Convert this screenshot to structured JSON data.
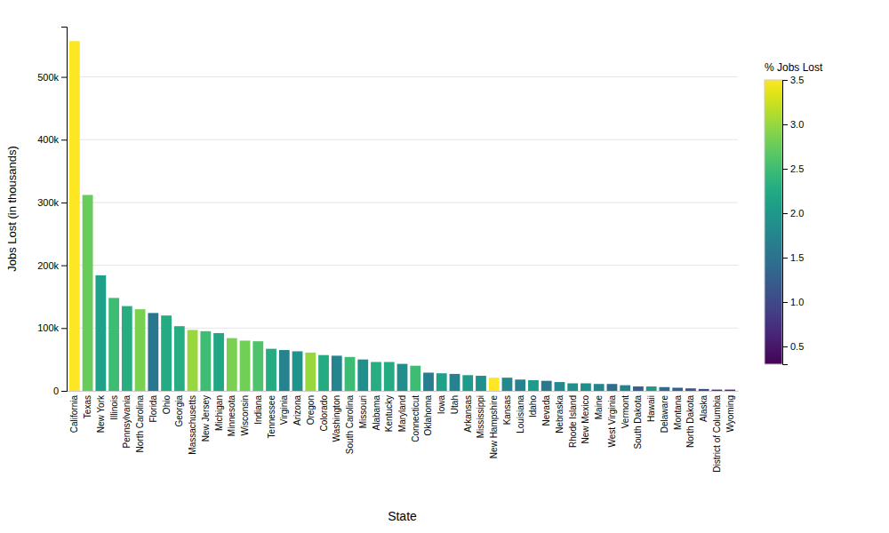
{
  "chart_data": {
    "type": "bar",
    "xlabel": "State",
    "ylabel": "Jobs Lost (in thousands)",
    "categories": [
      "California",
      "Texas",
      "New York",
      "Illinois",
      "Pennsylvania",
      "North Carolina",
      "Florida",
      "Ohio",
      "Georgia",
      "Massachusetts",
      "New Jersey",
      "Michigan",
      "Minnesota",
      "Wisconsin",
      "Indiana",
      "Tennessee",
      "Virginia",
      "Arizona",
      "Oregon",
      "Colorado",
      "Washington",
      "South Carolina",
      "Missouri",
      "Alabama",
      "Kentucky",
      "Maryland",
      "Connecticut",
      "Oklahoma",
      "Iowa",
      "Utah",
      "Arkansas",
      "Mississippi",
      "New Hampshire",
      "Kansas",
      "Louisiana",
      "Idaho",
      "Nevada",
      "Nebraska",
      "Rhode Island",
      "New Mexico",
      "Maine",
      "West Virginia",
      "Vermont",
      "South Dakota",
      "Hawaii",
      "Delaware",
      "Montana",
      "North Dakota",
      "Alaska",
      "District of Columbia",
      "Wyoming"
    ],
    "values": [
      557000,
      312000,
      184000,
      148000,
      135000,
      130000,
      124000,
      120000,
      103000,
      97000,
      95000,
      92000,
      84000,
      80000,
      79000,
      67000,
      65000,
      63000,
      61000,
      57000,
      56000,
      54000,
      50000,
      46000,
      46000,
      43000,
      40000,
      29000,
      28000,
      27000,
      25000,
      24000,
      21000,
      21000,
      18000,
      17000,
      16000,
      14000,
      12000,
      12000,
      11000,
      11000,
      9000,
      7000,
      7000,
      6000,
      5000,
      4000,
      3000,
      2000,
      2000
    ],
    "color_values": [
      3.5,
      2.75,
      2.1,
      2.5,
      2.3,
      2.85,
      1.55,
      2.25,
      2.3,
      3.0,
      2.5,
      2.2,
      2.85,
      2.8,
      2.6,
      2.25,
      1.7,
      1.95,
      3.0,
      2.25,
      1.75,
      2.5,
      1.9,
      2.3,
      2.25,
      1.85,
      2.5,
      1.65,
      2.1,
      1.7,
      2.05,
      1.9,
      3.5,
      1.8,
      1.7,
      2.05,
      1.6,
      1.8,
      1.9,
      1.85,
      1.75,
      1.45,
      1.7,
      1.25,
      2.0,
      1.4,
      1.3,
      1.2,
      1.0,
      0.75,
      0.7
    ],
    "colorbar_label": "% Jobs Lost",
    "colorbar_lim": [
      0.3,
      3.5
    ],
    "colorbar_ticks": [
      0.5,
      {
        "value": 1.0,
        "label": "1.0"
      },
      1.5,
      {
        "value": 2.0,
        "label": "2.0"
      },
      2.5,
      {
        "value": 3.0,
        "label": "3.0"
      },
      3.5
    ],
    "ylim": [
      0,
      580000
    ],
    "yticks": [
      0,
      {
        "value": 100000,
        "label": "100k"
      },
      {
        "value": 200000,
        "label": "200k"
      },
      {
        "value": 300000,
        "label": "300k"
      },
      {
        "value": 400000,
        "label": "400k"
      },
      {
        "value": 500000,
        "label": "500k"
      }
    ],
    "grid": true
  }
}
